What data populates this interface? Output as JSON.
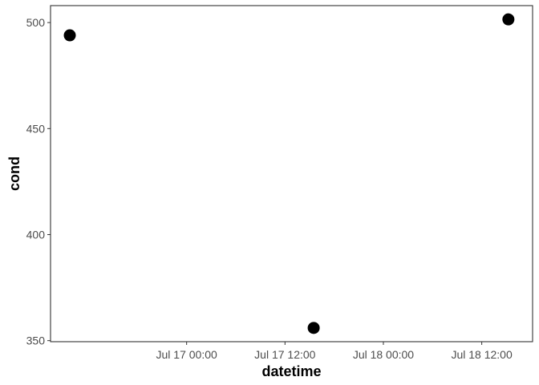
{
  "chart_data": {
    "type": "scatter",
    "xlabel": "datetime",
    "ylabel": "cond",
    "x_scale": "datetime",
    "xlim": [
      "2024-07-16 07:24",
      "2024-07-18 18:12"
    ],
    "ylim": [
      349.5,
      508
    ],
    "x_ticks": [
      {
        "value": "2024-07-17 00:00",
        "label": "Jul 17 00:00"
      },
      {
        "value": "2024-07-17 12:00",
        "label": "Jul 17 12:00"
      },
      {
        "value": "2024-07-18 00:00",
        "label": "Jul 18 00:00"
      },
      {
        "value": "2024-07-18 12:00",
        "label": "Jul 18 12:00"
      }
    ],
    "y_ticks": [
      {
        "value": 350,
        "label": "350"
      },
      {
        "value": 400,
        "label": "400"
      },
      {
        "value": 450,
        "label": "450"
      },
      {
        "value": 500,
        "label": "500"
      }
    ],
    "points": [
      {
        "x": "2024-07-16 09:45",
        "y": 494
      },
      {
        "x": "2024-07-17 15:30",
        "y": 356
      },
      {
        "x": "2024-07-18 15:15",
        "y": 501.5
      }
    ],
    "grid": false,
    "point_color": "#000000",
    "frame_color": "#333333",
    "tick_label_color": "#4d4d4d"
  }
}
